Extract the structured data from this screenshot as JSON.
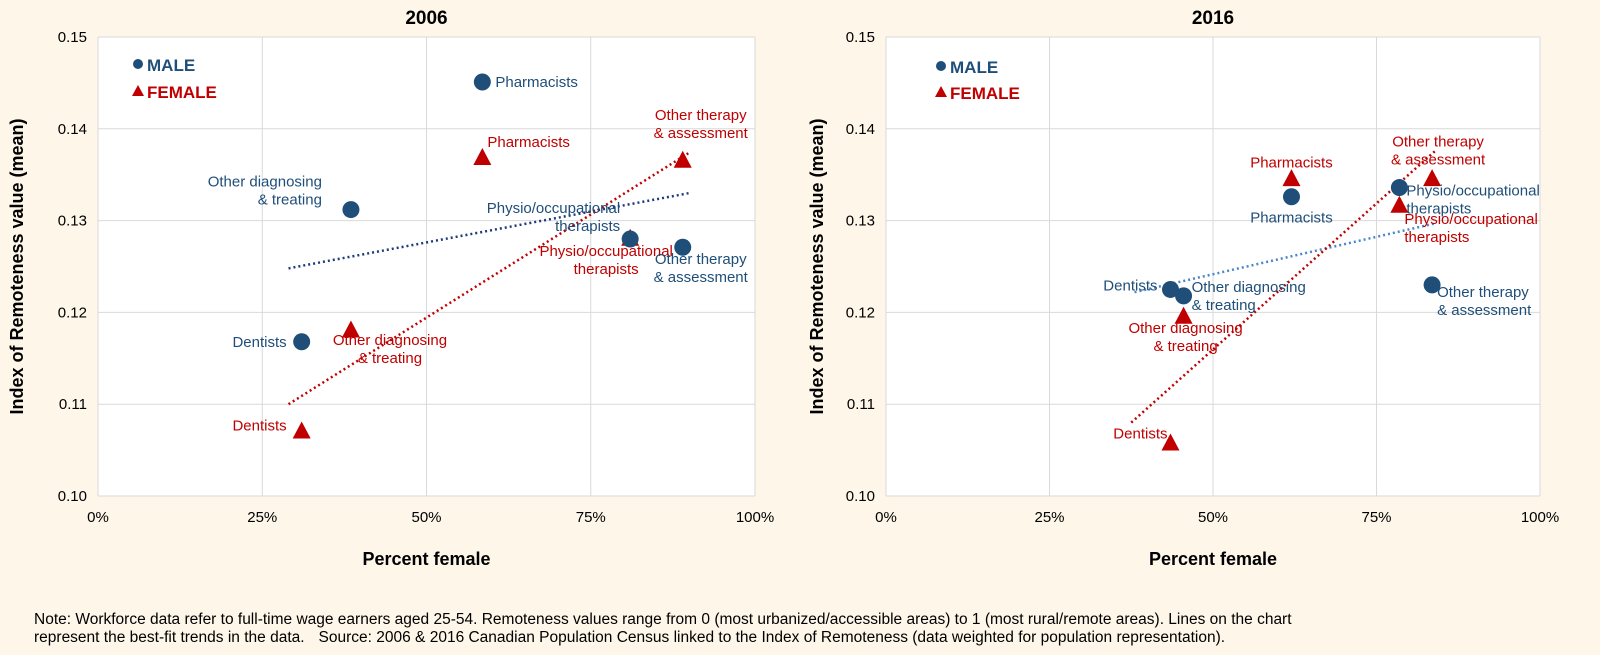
{
  "colors": {
    "male": "#1f4e79",
    "female": "#c00000",
    "male_trend_2006": "#1f3a7a",
    "male_trend_2016": "#4a86c8",
    "grid": "#d9d9d9",
    "background": "#fdf6e9",
    "plot_background": "#ffffff"
  },
  "chart_data": [
    {
      "type": "scatter",
      "title": "2006",
      "xlabel": "Percent female",
      "ylabel": "Index of Remoteness value (mean)",
      "xlim": [
        0,
        100
      ],
      "ylim": [
        0.1,
        0.15
      ],
      "x_ticks": [
        "0%",
        "25%",
        "50%",
        "75%",
        "100%"
      ],
      "y_ticks": [
        "0.10",
        "0.11",
        "0.12",
        "0.13",
        "0.14",
        "0.15"
      ],
      "legend": [
        {
          "label": "MALE",
          "marker": "circle"
        },
        {
          "label": "FEMALE",
          "marker": "triangle"
        }
      ],
      "series": [
        {
          "name": "MALE",
          "marker": "circle",
          "points": [
            {
              "label": "Pharmacists",
              "x": 58.5,
              "y": 0.1451
            },
            {
              "label": "Other diagnosing & treating",
              "x": 38.5,
              "y": 0.1312
            },
            {
              "label": "Physio/occupational therapists",
              "x": 81,
              "y": 0.128
            },
            {
              "label": "Other therapy & assessment",
              "x": 89,
              "y": 0.1271
            },
            {
              "label": "Dentists",
              "x": 31,
              "y": 0.1168
            }
          ],
          "trend": {
            "x1": 29,
            "y1": 0.1248,
            "x2": 90,
            "y2": 0.133
          }
        },
        {
          "name": "FEMALE",
          "marker": "triangle",
          "points": [
            {
              "label": "Pharmacists",
              "x": 58.5,
              "y": 0.1368
            },
            {
              "label": "Other therapy & assessment",
              "x": 89,
              "y": 0.1365
            },
            {
              "label": "Physio/occupational therapists",
              "x": 81,
              "y": 0.128
            },
            {
              "label": "Other diagnosing & treating",
              "x": 38.5,
              "y": 0.118
            },
            {
              "label": "Dentists",
              "x": 31,
              "y": 0.107
            }
          ],
          "trend": {
            "x1": 29,
            "y1": 0.11,
            "x2": 90,
            "y2": 0.1374
          }
        }
      ]
    },
    {
      "type": "scatter",
      "title": "2016",
      "xlabel": "Percent female",
      "ylabel": "Index of Remoteness value (mean)",
      "xlim": [
        0,
        100
      ],
      "ylim": [
        0.1,
        0.15
      ],
      "x_ticks": [
        "0%",
        "25%",
        "50%",
        "75%",
        "100%"
      ],
      "y_ticks": [
        "0.10",
        "0.11",
        "0.12",
        "0.13",
        "0.14",
        "0.15"
      ],
      "legend": [
        {
          "label": "MALE",
          "marker": "circle"
        },
        {
          "label": "FEMALE",
          "marker": "triangle"
        }
      ],
      "series": [
        {
          "name": "MALE",
          "marker": "circle",
          "points": [
            {
              "label": "Physio/occupational therapists",
              "x": 78.5,
              "y": 0.1336
            },
            {
              "label": "Pharmacists",
              "x": 62,
              "y": 0.1326
            },
            {
              "label": "Other therapy & assessment",
              "x": 83.5,
              "y": 0.123
            },
            {
              "label": "Dentists",
              "x": 43.5,
              "y": 0.1225
            },
            {
              "label": "Other diagnosing & treating",
              "x": 45.5,
              "y": 0.1218
            }
          ],
          "trend": {
            "x1": 38,
            "y1": 0.1222,
            "x2": 84,
            "y2": 0.1297
          }
        },
        {
          "name": "FEMALE",
          "marker": "triangle",
          "points": [
            {
              "label": "Pharmacists",
              "x": 62,
              "y": 0.1345
            },
            {
              "label": "Other therapy & assessment",
              "x": 83.5,
              "y": 0.1345
            },
            {
              "label": "Physio/occupational therapists",
              "x": 78.5,
              "y": 0.1316
            },
            {
              "label": "Other diagnosing & treating",
              "x": 45.5,
              "y": 0.1195
            },
            {
              "label": "Dentists",
              "x": 43.5,
              "y": 0.1057
            }
          ],
          "trend": {
            "x1": 37.5,
            "y1": 0.108,
            "x2": 84,
            "y2": 0.1376
          }
        }
      ]
    }
  ],
  "note": {
    "line1": "Note: Workforce data refer to full-time wage earners aged 25-54. Remoteness values range from 0 (most urbanized/accessible areas) to 1 (most rural/remote areas). Lines on the chart",
    "line2a": "represent the best-fit trends in the data.",
    "line2b": "Source: 2006 & 2016 Canadian Population Census linked to the Index of Remoteness (data weighted for population representation)."
  }
}
